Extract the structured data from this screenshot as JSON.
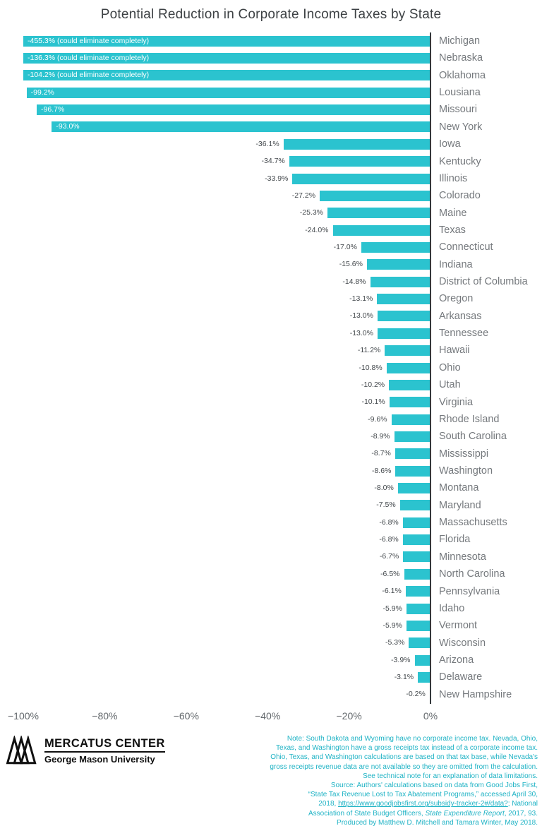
{
  "chart_data": {
    "type": "bar",
    "orientation": "horizontal",
    "title": "Potential Reduction in Corporate Income Taxes by State",
    "xlabel": "",
    "ylabel": "",
    "xlim": [
      -100,
      0
    ],
    "grid": false,
    "bar_color": "#2BC3CF",
    "axis_color": "#33383b",
    "x_ticks": [
      {
        "label": "−100%",
        "value": -100
      },
      {
        "label": "−80%",
        "value": -80
      },
      {
        "label": "−60%",
        "value": -60
      },
      {
        "label": "−40%",
        "value": -40
      },
      {
        "label": "−20%",
        "value": -20
      },
      {
        "label": "0%",
        "value": 0
      }
    ],
    "states": [
      {
        "name": "Michigan",
        "value": -455.3,
        "label": "-455.3% (could eliminate completely)",
        "label_inside": true
      },
      {
        "name": "Nebraska",
        "value": -136.3,
        "label": "-136.3% (could eliminate completely)",
        "label_inside": true
      },
      {
        "name": "Oklahoma",
        "value": -104.2,
        "label": "-104.2% (could eliminate completely)",
        "label_inside": true
      },
      {
        "name": "Lousiana",
        "value": -99.2,
        "label": "-99.2%",
        "label_inside": true
      },
      {
        "name": "Missouri",
        "value": -96.7,
        "label": "-96.7%",
        "label_inside": true
      },
      {
        "name": "New York",
        "value": -93.0,
        "label": "-93.0%",
        "label_inside": true
      },
      {
        "name": "Iowa",
        "value": -36.1,
        "label": "-36.1%",
        "label_inside": false
      },
      {
        "name": "Kentucky",
        "value": -34.7,
        "label": "-34.7%",
        "label_inside": false
      },
      {
        "name": "Illinois",
        "value": -33.9,
        "label": "-33.9%",
        "label_inside": false
      },
      {
        "name": "Colorado",
        "value": -27.2,
        "label": "-27.2%",
        "label_inside": false
      },
      {
        "name": "Maine",
        "value": -25.3,
        "label": "-25.3%",
        "label_inside": false
      },
      {
        "name": "Texas",
        "value": -24.0,
        "label": "-24.0%",
        "label_inside": false
      },
      {
        "name": "Connecticut",
        "value": -17.0,
        "label": "-17.0%",
        "label_inside": false
      },
      {
        "name": "Indiana",
        "value": -15.6,
        "label": "-15.6%",
        "label_inside": false
      },
      {
        "name": "District of Columbia",
        "value": -14.8,
        "label": "-14.8%",
        "label_inside": false
      },
      {
        "name": "Oregon",
        "value": -13.1,
        "label": "-13.1%",
        "label_inside": false
      },
      {
        "name": "Arkansas",
        "value": -13.0,
        "label": "-13.0%",
        "label_inside": false
      },
      {
        "name": "Tennessee",
        "value": -13.0,
        "label": "-13.0%",
        "label_inside": false
      },
      {
        "name": "Hawaii",
        "value": -11.2,
        "label": "-11.2%",
        "label_inside": false
      },
      {
        "name": "Ohio",
        "value": -10.8,
        "label": "-10.8%",
        "label_inside": false
      },
      {
        "name": "Utah",
        "value": -10.2,
        "label": "-10.2%",
        "label_inside": false
      },
      {
        "name": "Virginia",
        "value": -10.1,
        "label": "-10.1%",
        "label_inside": false
      },
      {
        "name": "Rhode Island",
        "value": -9.6,
        "label": "-9.6%",
        "label_inside": false
      },
      {
        "name": "South Carolina",
        "value": -8.9,
        "label": "-8.9%",
        "label_inside": false
      },
      {
        "name": "Mississippi",
        "value": -8.7,
        "label": "-8.7%",
        "label_inside": false
      },
      {
        "name": "Washington",
        "value": -8.6,
        "label": "-8.6%",
        "label_inside": false
      },
      {
        "name": "Montana",
        "value": -8.0,
        "label": "-8.0%",
        "label_inside": false
      },
      {
        "name": "Maryland",
        "value": -7.5,
        "label": "-7.5%",
        "label_inside": false
      },
      {
        "name": "Massachusetts",
        "value": -6.8,
        "label": "-6.8%",
        "label_inside": false
      },
      {
        "name": "Florida",
        "value": -6.8,
        "label": "-6.8%",
        "label_inside": false
      },
      {
        "name": "Minnesota",
        "value": -6.7,
        "label": "-6.7%",
        "label_inside": false
      },
      {
        "name": "North Carolina",
        "value": -6.5,
        "label": "-6.5%",
        "label_inside": false
      },
      {
        "name": "Pennsylvania",
        "value": -6.1,
        "label": "-6.1%",
        "label_inside": false
      },
      {
        "name": "Idaho",
        "value": -5.9,
        "label": "-5.9%",
        "label_inside": false
      },
      {
        "name": "Vermont",
        "value": -5.9,
        "label": "-5.9%",
        "label_inside": false
      },
      {
        "name": "Wisconsin",
        "value": -5.3,
        "label": "-5.3%",
        "label_inside": false
      },
      {
        "name": "Arizona",
        "value": -3.9,
        "label": "-3.9%",
        "label_inside": false
      },
      {
        "name": "Delaware",
        "value": -3.1,
        "label": "-3.1%",
        "label_inside": false
      },
      {
        "name": "New Hampshire",
        "value": -0.2,
        "label": "-0.2%",
        "label_inside": false
      }
    ]
  },
  "footer": {
    "logo": {
      "name": "MERCATUS CENTER",
      "university": "George Mason University"
    },
    "note_color": "#1FB3C5",
    "notes": [
      [
        {
          "t": "Note: South Dakota and Wyoming have no corporate income tax. Nevada, Ohio,"
        }
      ],
      [
        {
          "t": "Texas, and Washington have a gross receipts tax instead of a corporate income tax."
        }
      ],
      [
        {
          "t": "Ohio, Texas, and Washington calculations are based on that tax base, while Nevada's"
        }
      ],
      [
        {
          "t": "gross receipts revenue data are not available so they are omitted from the calculation."
        }
      ],
      [
        {
          "t": "See technical note for an explanation of data limitations."
        }
      ],
      [
        {
          "t": "Source: Authors' calculations based on data from Good Jobs First,"
        }
      ],
      [
        {
          "t": "“State Tax Revenue Lost to Tax Abatement Programs,” accessed April 30,"
        }
      ],
      [
        {
          "t": "2018, "
        },
        {
          "t": "https://www.goodjobsfirst.org/subsidy-tracker-2#/data?",
          "u": true
        },
        {
          "t": "; National"
        }
      ],
      [
        {
          "t": "Association of State Budget Officers, "
        },
        {
          "t": "State Expenditure Report",
          "i": true
        },
        {
          "t": ", 2017, 93."
        }
      ],
      [
        {
          "t": "Produced by Matthew D. Mitchell and Tamara Winter, May 2018."
        }
      ]
    ]
  }
}
